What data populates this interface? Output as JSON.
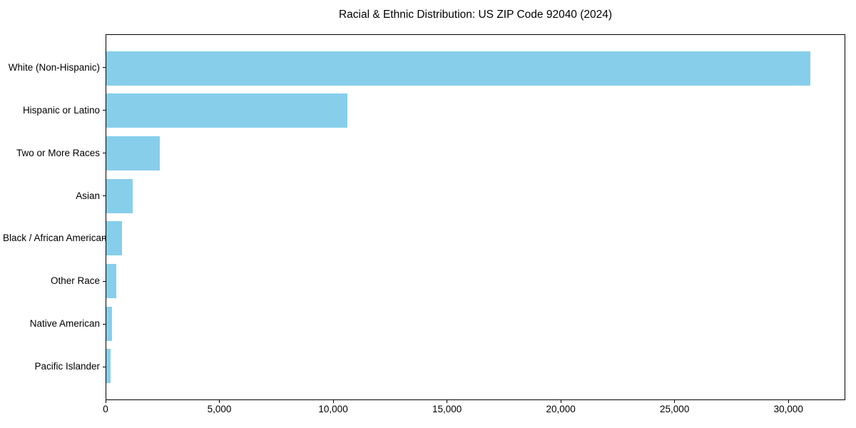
{
  "figure": {
    "background": "#FFFFFF"
  },
  "chart_data": {
    "type": "bar",
    "orientation": "horizontal",
    "title": "Racial & Ethnic Distribution: US ZIP Code 92040 (2024)",
    "categories": [
      "White (Non-Hispanic)",
      "Hispanic or Latino",
      "Two or More Races",
      "Asian",
      "Black / African American",
      "Other Race",
      "Native American",
      "Pacific Islander"
    ],
    "values": [
      31000,
      10620,
      2350,
      1150,
      690,
      440,
      250,
      190
    ],
    "xlabel": "",
    "ylabel": "",
    "xlim": [
      0,
      32500
    ],
    "xticks": {
      "values": [
        0,
        5000,
        10000,
        15000,
        20000,
        25000,
        30000
      ],
      "labels": [
        "0",
        "5,000",
        "10,000",
        "15,000",
        "20,000",
        "25,000",
        "30,000"
      ]
    },
    "bar_color": "#87CEEB",
    "axis_color": "#000000",
    "text_color": "#000000",
    "grid": false,
    "legend": null
  }
}
